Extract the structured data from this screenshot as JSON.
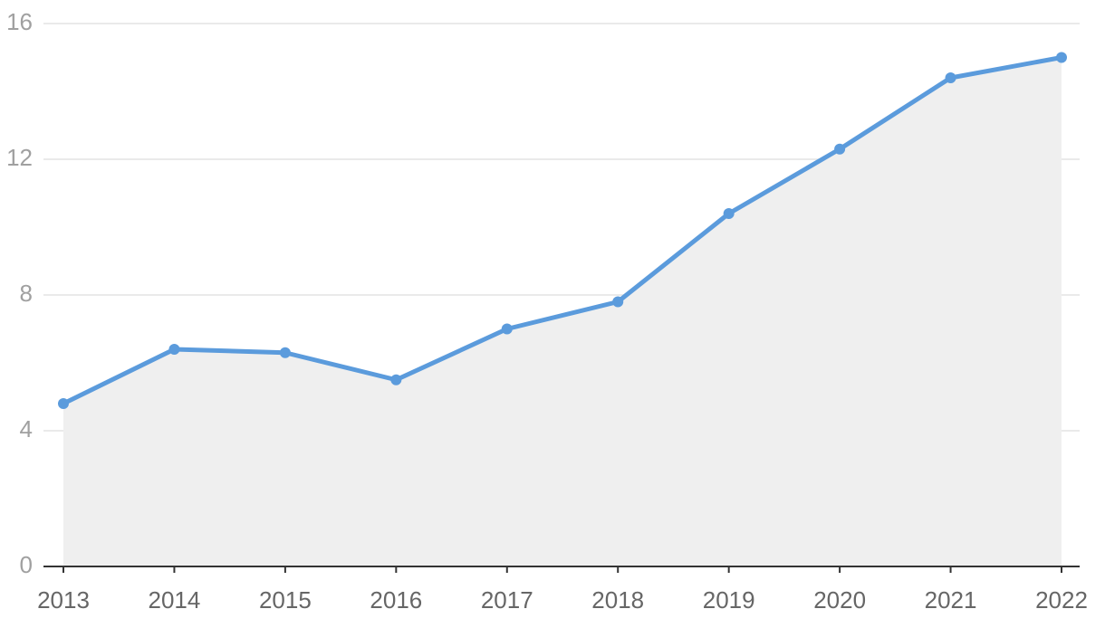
{
  "chart_data": {
    "type": "line",
    "categories": [
      "2013",
      "2014",
      "2015",
      "2016",
      "2017",
      "2018",
      "2019",
      "2020",
      "2021",
      "2022"
    ],
    "values": [
      4.8,
      6.4,
      6.3,
      5.5,
      7.0,
      7.8,
      10.4,
      12.3,
      14.4,
      15.0
    ],
    "color": "#5b9bdc",
    "area_color": "#efefef",
    "ylim": [
      0,
      16
    ],
    "yticks": [
      0,
      4,
      8,
      12,
      16
    ],
    "grid": true
  }
}
